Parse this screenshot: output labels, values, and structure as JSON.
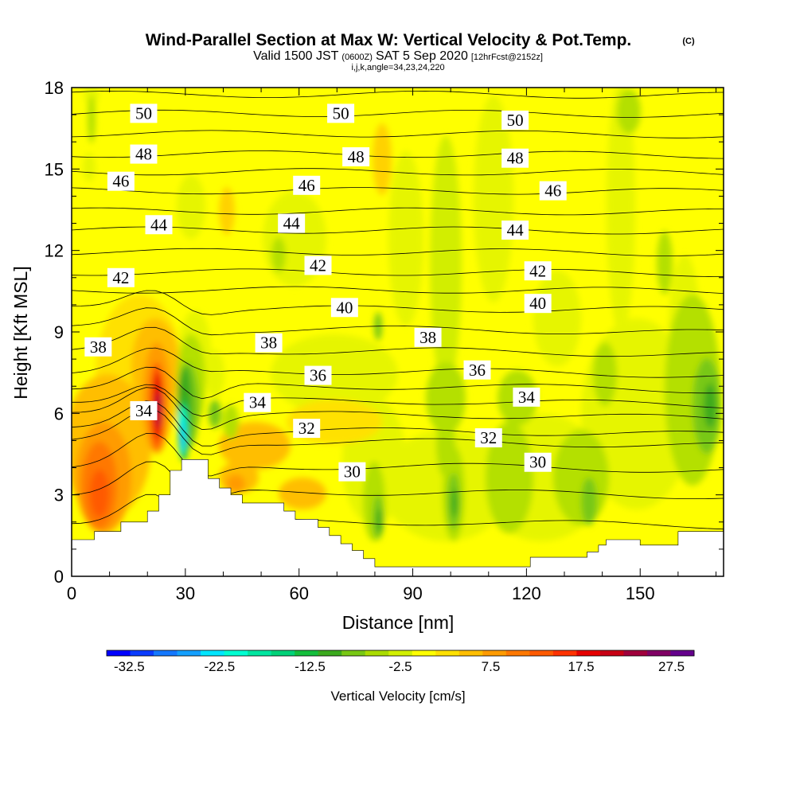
{
  "title": {
    "main": "Wind-Parallel Section at Max W: Vertical Velocity & Pot.Temp.",
    "main_suffix": "(C)",
    "valid_a": "Valid 1500 JST",
    "valid_b": "(0600Z)",
    "valid_c": "SAT 5 Sep 2020",
    "valid_d": "[12hrFcst@2152z]",
    "params": "i,j,k,angle=34,23,24,220"
  },
  "colorbar": {
    "title": "Vertical Velocity [cm/s]",
    "tick_labels": [
      "-32.5",
      "-22.5",
      "-12.5",
      "-2.5",
      "7.5",
      "17.5",
      "27.5"
    ],
    "colors": [
      "#0000ff",
      "#0a3cff",
      "#1478ff",
      "#14a0ff",
      "#00e6ff",
      "#00ffd2",
      "#00e6a0",
      "#00d278",
      "#14be3c",
      "#3caa1e",
      "#78c814",
      "#aadc00",
      "#d2f000",
      "#ffff00",
      "#ffe100",
      "#ffbe00",
      "#ff9b00",
      "#ff7800",
      "#ff5a00",
      "#ff3200",
      "#e60000",
      "#c80014",
      "#a0003c",
      "#800064",
      "#64008c"
    ],
    "min": -35,
    "max": 30
  },
  "chart_data": {
    "type": "heatmap",
    "title": "Wind-Parallel Section at Max W: Vertical Velocity & Pot.Temp.",
    "xlabel": "Distance [nm]",
    "ylabel": "Height [Kft MSL]",
    "xlim": [
      0,
      172
    ],
    "ylim": [
      0,
      18
    ],
    "x_ticks": [
      "0",
      "30",
      "60",
      "90",
      "120",
      "150"
    ],
    "y_ticks": [
      "0",
      "3",
      "6",
      "9",
      "12",
      "15",
      "18"
    ],
    "x_tick_values": [
      0,
      30,
      60,
      90,
      120,
      150
    ],
    "y_tick_values": [
      0,
      3,
      6,
      9,
      12,
      15,
      18
    ],
    "fill_variable": "Vertical Velocity [cm/s]",
    "contour_variable": "Pot.Temp. (C)",
    "contour_levels": [
      29,
      30,
      31,
      32,
      33,
      34,
      35,
      36,
      37,
      38,
      39,
      40,
      41,
      42,
      43,
      44,
      45,
      46,
      47,
      48,
      49,
      50,
      51
    ],
    "contour_labels": [
      {
        "text": "50",
        "x": 19,
        "y": 17.05
      },
      {
        "text": "50",
        "x": 71,
        "y": 17.05
      },
      {
        "text": "50",
        "x": 117,
        "y": 16.8
      },
      {
        "text": "48",
        "x": 19,
        "y": 15.55
      },
      {
        "text": "48",
        "x": 75,
        "y": 15.45
      },
      {
        "text": "48",
        "x": 117,
        "y": 15.4
      },
      {
        "text": "46",
        "x": 13,
        "y": 14.55
      },
      {
        "text": "46",
        "x": 62,
        "y": 14.4
      },
      {
        "text": "46",
        "x": 127,
        "y": 14.2
      },
      {
        "text": "44",
        "x": 23,
        "y": 12.95
      },
      {
        "text": "44",
        "x": 58,
        "y": 13.0
      },
      {
        "text": "44",
        "x": 117,
        "y": 12.75
      },
      {
        "text": "42",
        "x": 13,
        "y": 11.0
      },
      {
        "text": "42",
        "x": 65,
        "y": 11.45
      },
      {
        "text": "42",
        "x": 123,
        "y": 11.25
      },
      {
        "text": "40",
        "x": 72,
        "y": 9.9
      },
      {
        "text": "40",
        "x": 123,
        "y": 10.05
      },
      {
        "text": "38",
        "x": 7,
        "y": 8.45
      },
      {
        "text": "38",
        "x": 52,
        "y": 8.6
      },
      {
        "text": "38",
        "x": 94,
        "y": 8.8
      },
      {
        "text": "36",
        "x": 65,
        "y": 7.4
      },
      {
        "text": "36",
        "x": 107,
        "y": 7.6
      },
      {
        "text": "34",
        "x": 19,
        "y": 6.1
      },
      {
        "text": "34",
        "x": 49,
        "y": 6.4
      },
      {
        "text": "34",
        "x": 120,
        "y": 6.6
      },
      {
        "text": "32",
        "x": 62,
        "y": 5.45
      },
      {
        "text": "32",
        "x": 110,
        "y": 5.1
      },
      {
        "text": "30",
        "x": 74,
        "y": 3.85
      },
      {
        "text": "30",
        "x": 123,
        "y": 4.2
      }
    ],
    "terrain": [
      [
        0,
        1.35
      ],
      [
        6,
        1.35
      ],
      [
        6,
        1.65
      ],
      [
        13,
        1.65
      ],
      [
        13,
        2.0
      ],
      [
        20,
        2.0
      ],
      [
        20,
        2.4
      ],
      [
        23,
        2.4
      ],
      [
        23,
        3.0
      ],
      [
        26,
        3.0
      ],
      [
        26,
        3.9
      ],
      [
        29,
        3.9
      ],
      [
        29,
        4.3
      ],
      [
        36,
        4.3
      ],
      [
        36,
        3.6
      ],
      [
        39,
        3.6
      ],
      [
        39,
        3.25
      ],
      [
        42,
        3.25
      ],
      [
        42,
        3.0
      ],
      [
        45,
        3.0
      ],
      [
        45,
        2.7
      ],
      [
        56,
        2.7
      ],
      [
        56,
        2.4
      ],
      [
        59,
        2.4
      ],
      [
        59,
        2.1
      ],
      [
        65,
        2.1
      ],
      [
        65,
        1.8
      ],
      [
        68,
        1.8
      ],
      [
        68,
        1.5
      ],
      [
        71,
        1.5
      ],
      [
        71,
        1.2
      ],
      [
        74,
        1.2
      ],
      [
        74,
        0.95
      ],
      [
        77,
        0.95
      ],
      [
        77,
        0.65
      ],
      [
        80,
        0.65
      ],
      [
        80,
        0.35
      ],
      [
        121,
        0.35
      ],
      [
        121,
        0.7
      ],
      [
        136,
        0.7
      ],
      [
        136,
        0.9
      ],
      [
        139,
        0.9
      ],
      [
        139,
        1.15
      ],
      [
        141,
        1.15
      ],
      [
        141,
        1.35
      ],
      [
        150,
        1.35
      ],
      [
        150,
        1.15
      ],
      [
        160,
        1.15
      ],
      [
        160,
        1.65
      ],
      [
        172,
        1.65
      ]
    ],
    "grid": false
  }
}
